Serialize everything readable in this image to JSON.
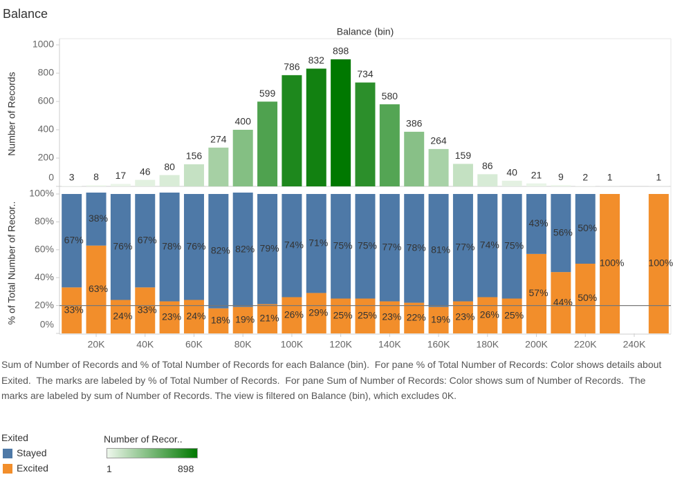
{
  "title": "Balance",
  "chart_data": [
    {
      "type": "bar",
      "x_label": "Balance (bin)",
      "y_label": "Number of Records",
      "x": [
        10000,
        20000,
        30000,
        40000,
        50000,
        60000,
        70000,
        80000,
        90000,
        100000,
        110000,
        120000,
        130000,
        140000,
        150000,
        160000,
        170000,
        180000,
        190000,
        200000,
        210000,
        220000,
        230000,
        250000
      ],
      "values": [
        3,
        8,
        17,
        46,
        80,
        156,
        274,
        400,
        599,
        786,
        832,
        898,
        734,
        580,
        386,
        264,
        159,
        86,
        40,
        21,
        9,
        2,
        1,
        1
      ],
      "xlim": [
        5000,
        255000
      ],
      "ylim": [
        0,
        1000
      ],
      "yticks": [
        0,
        200,
        400,
        600,
        800,
        1000
      ],
      "color_scale": {
        "title": "Number of Recor..",
        "min": 1,
        "max": 898,
        "colors": [
          "#eef7ec",
          "#007800"
        ]
      }
    },
    {
      "type": "stacked_bar",
      "y_label": "% of Total Number of Recor..",
      "legend_title": "Exited",
      "x": [
        10000,
        20000,
        30000,
        40000,
        50000,
        60000,
        70000,
        80000,
        90000,
        100000,
        110000,
        120000,
        130000,
        140000,
        150000,
        160000,
        170000,
        180000,
        190000,
        200000,
        210000,
        220000,
        230000,
        250000
      ],
      "xlim": [
        5000,
        255000
      ],
      "xticks": [
        {
          "value": 20000,
          "label": "20K"
        },
        {
          "value": 40000,
          "label": "40K"
        },
        {
          "value": 60000,
          "label": "60K"
        },
        {
          "value": 80000,
          "label": "80K"
        },
        {
          "value": 100000,
          "label": "100K"
        },
        {
          "value": 120000,
          "label": "120K"
        },
        {
          "value": 140000,
          "label": "140K"
        },
        {
          "value": 160000,
          "label": "160K"
        },
        {
          "value": 180000,
          "label": "180K"
        },
        {
          "value": 200000,
          "label": "200K"
        },
        {
          "value": 220000,
          "label": "220K"
        },
        {
          "value": 240000,
          "label": "240K"
        }
      ],
      "ylim": [
        0,
        100
      ],
      "yticks": [
        {
          "value": 0,
          "label": "0%"
        },
        {
          "value": 20,
          "label": "20%"
        },
        {
          "value": 40,
          "label": "40%"
        },
        {
          "value": 60,
          "label": "60%"
        },
        {
          "value": 80,
          "label": "80%"
        },
        {
          "value": 100,
          "label": "100%"
        }
      ],
      "reference_line": 20,
      "series": [
        {
          "name": "Stayed",
          "color": "#4e79a7",
          "values": [
            67,
            38,
            76,
            67,
            78,
            76,
            82,
            82,
            79,
            74,
            71,
            75,
            75,
            77,
            78,
            81,
            77,
            74,
            75,
            43,
            56,
            50,
            null,
            null
          ],
          "value_labels": [
            "67%",
            "38%",
            "76%",
            "67%",
            "78%",
            "76%",
            "82%",
            "82%",
            "79%",
            "74%",
            "71%",
            "75%",
            "75%",
            "77%",
            "78%",
            "81%",
            "77%",
            "74%",
            "75%",
            "43%",
            "56%",
            "50%",
            null,
            null
          ]
        },
        {
          "name": "Excited",
          "color": "#f28e2b",
          "values": [
            33,
            63,
            24,
            33,
            23,
            24,
            18,
            19,
            21,
            26,
            29,
            25,
            25,
            23,
            22,
            19,
            23,
            26,
            25,
            57,
            44,
            50,
            100,
            100
          ],
          "value_labels": [
            "33%",
            "63%",
            "24%",
            "33%",
            "23%",
            "24%",
            "18%",
            "19%",
            "21%",
            "26%",
            "29%",
            "25%",
            "25%",
            "23%",
            "22%",
            "19%",
            "23%",
            "26%",
            "25%",
            "57%",
            "44%",
            "50%",
            "100%",
            "100%"
          ]
        }
      ]
    }
  ],
  "caption": "Sum of Number of Records and % of Total Number of Records for each Balance (bin).  For pane % of Total Number of Records: Color shows details about Exited.  The marks are labeled by % of Total Number of Records.  For pane Sum of Number of Records: Color shows sum of Number of Records.  The marks are labeled by sum of Number of Records. The view is filtered on Balance (bin), which excludes 0K."
}
